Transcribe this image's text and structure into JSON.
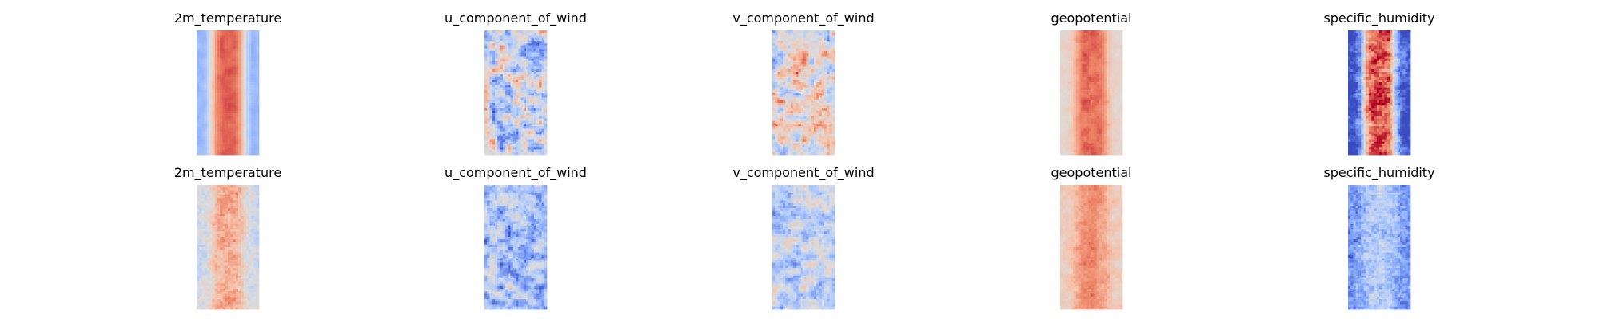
{
  "chart_data": {
    "type": "heatmap",
    "colormap": "coolwarm",
    "colormap_stops": [
      "#3b4cc0",
      "#7396f5",
      "#b0cbfc",
      "#dddddd",
      "#f6bfa6",
      "#ec7f63",
      "#b40426"
    ],
    "grid": false,
    "axes": "off",
    "rows": 2,
    "columns": 5,
    "panels": [
      {
        "title": "2m_temperature",
        "row": 0,
        "col": 0,
        "pattern": "band",
        "params": {
          "edge": 0.28,
          "core": 0.88,
          "noise": 0.05,
          "lump": 0.0
        }
      },
      {
        "title": "u_component_of_wind",
        "row": 0,
        "col": 1,
        "pattern": "noise",
        "params": {
          "mean": 0.42,
          "amp": 0.45,
          "lump": 0.35
        }
      },
      {
        "title": "v_component_of_wind",
        "row": 0,
        "col": 2,
        "pattern": "noise",
        "params": {
          "mean": 0.52,
          "amp": 0.42,
          "lump": 0.25
        }
      },
      {
        "title": "geopotential",
        "row": 0,
        "col": 3,
        "pattern": "band",
        "params": {
          "edge": 0.55,
          "core": 0.86,
          "noise": 0.06,
          "lump": 0.05
        }
      },
      {
        "title": "specific_humidity",
        "row": 0,
        "col": 4,
        "pattern": "band",
        "params": {
          "edge": 0.02,
          "core": 0.9,
          "noise": 0.18,
          "lump": 0.25
        }
      },
      {
        "title": "2m_temperature",
        "row": 1,
        "col": 0,
        "pattern": "band",
        "params": {
          "edge": 0.45,
          "core": 0.72,
          "noise": 0.12,
          "lump": 0.2
        }
      },
      {
        "title": "u_component_of_wind",
        "row": 1,
        "col": 1,
        "pattern": "noise",
        "params": {
          "mean": 0.32,
          "amp": 0.35,
          "lump": 0.3
        }
      },
      {
        "title": "v_component_of_wind",
        "row": 1,
        "col": 2,
        "pattern": "noise",
        "params": {
          "mean": 0.4,
          "amp": 0.32,
          "lump": 0.25
        }
      },
      {
        "title": "geopotential",
        "row": 1,
        "col": 3,
        "pattern": "band",
        "params": {
          "edge": 0.6,
          "core": 0.78,
          "noise": 0.08,
          "lump": 0.12
        }
      },
      {
        "title": "specific_humidity",
        "row": 1,
        "col": 4,
        "pattern": "band",
        "params": {
          "edge": 0.18,
          "core": 0.36,
          "noise": 0.12,
          "lump": 0.3
        }
      }
    ]
  }
}
